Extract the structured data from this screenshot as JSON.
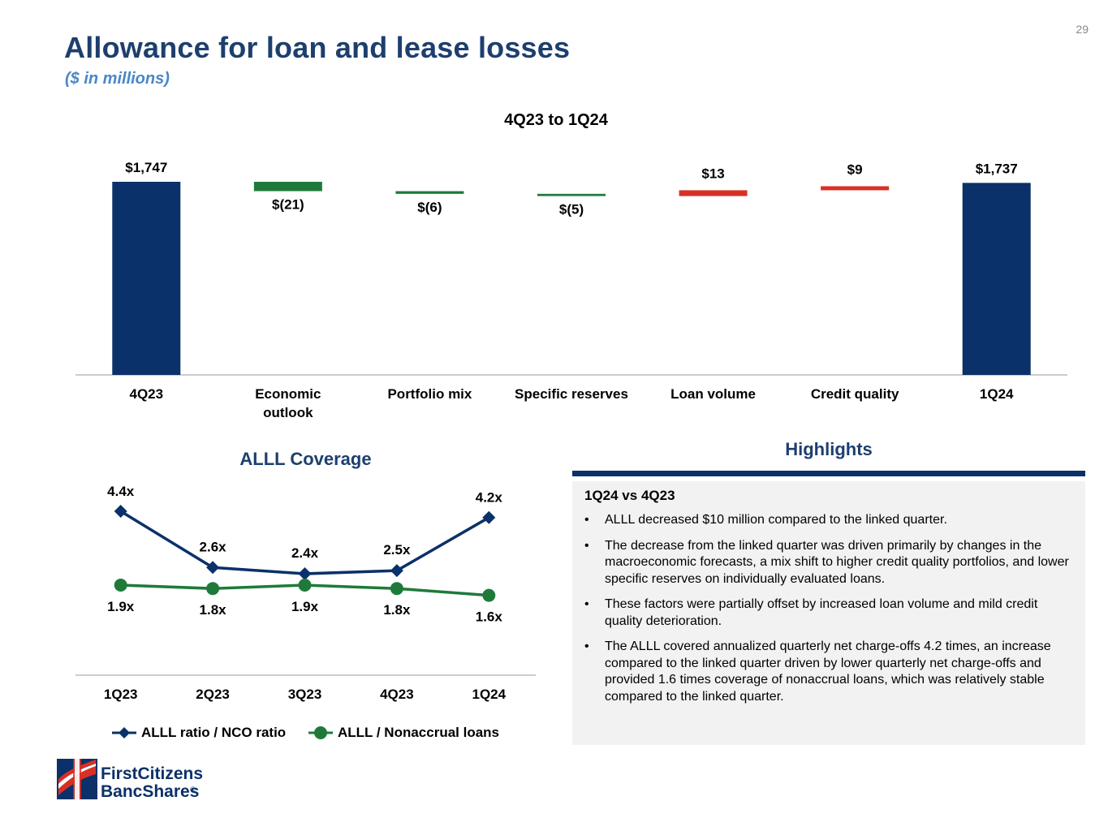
{
  "page_number": "29",
  "title": "Allowance for loan and lease losses",
  "subtitle": "($ in millions)",
  "chart_data": [
    {
      "type": "bar",
      "subtype": "waterfall",
      "title": "4Q23 to 1Q24",
      "categories": [
        "4Q23",
        "Economic outlook",
        "Portfolio mix",
        "Specific reserves",
        "Loan volume",
        "Credit quality",
        "1Q24"
      ],
      "values": [
        1747,
        -21,
        -6,
        -5,
        13,
        9,
        1737
      ],
      "kinds": [
        "total",
        "delta",
        "delta",
        "delta",
        "delta",
        "delta",
        "total"
      ],
      "data_labels": [
        "$1,747",
        "$(21)",
        "$(6)",
        "$(5)",
        "$13",
        "$9",
        "$1,737"
      ],
      "colors": {
        "total": "#0a3169",
        "decrease": "#1f7a3a",
        "increase": "#d93025"
      }
    },
    {
      "type": "line",
      "title": "ALLL Coverage",
      "categories": [
        "1Q23",
        "2Q23",
        "3Q23",
        "4Q23",
        "1Q24"
      ],
      "series": [
        {
          "name": "ALLL ratio / NCO ratio",
          "values": [
            4.4,
            2.6,
            2.4,
            2.5,
            4.2
          ],
          "labels": [
            "4.4x",
            "2.6x",
            "2.4x",
            "2.5x",
            "4.2x"
          ],
          "color": "#0a3169",
          "marker": "diamond"
        },
        {
          "name": "ALLL / Nonaccrual loans",
          "values": [
            1.9,
            1.8,
            1.9,
            1.8,
            1.6
          ],
          "labels": [
            "1.9x",
            "1.8x",
            "1.9x",
            "1.8x",
            "1.6x"
          ],
          "color": "#1f7a3a",
          "marker": "circle"
        }
      ]
    }
  ],
  "highlights": {
    "title": "Highlights",
    "subtitle": "1Q24 vs 4Q23",
    "bullet_char": "•",
    "items": [
      "ALLL decreased $10 million compared to the linked quarter.",
      "The decrease from the linked quarter was driven primarily by changes in the macroeconomic forecasts, a mix shift to higher credit quality portfolios, and lower specific reserves on individually evaluated loans.",
      "These factors were partially offset by increased loan volume and mild credit quality deterioration.",
      "The ALLL covered annualized quarterly net charge-offs 4.2 times, an increase compared to the linked quarter driven by lower quarterly net charge-offs and provided 1.6 times coverage of nonaccrual loans, which was relatively stable compared to the linked quarter."
    ]
  },
  "logo": {
    "line1": "FirstCitizens",
    "line2": "BancShares",
    "mark": "®"
  }
}
